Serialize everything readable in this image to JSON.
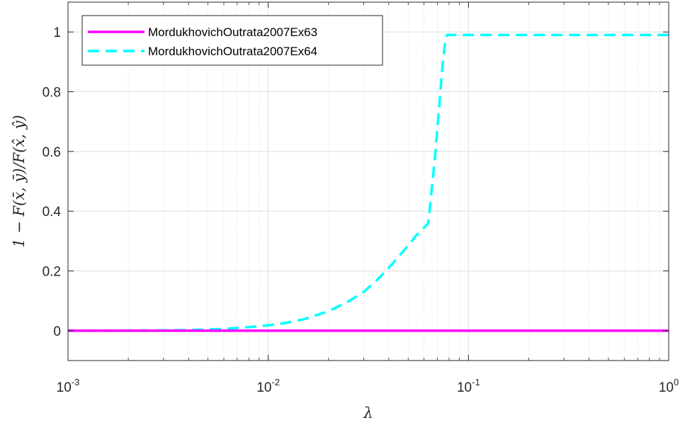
{
  "chart_data": {
    "type": "line",
    "xscale": "log",
    "xlim": [
      0.001,
      1
    ],
    "ylim": [
      -0.1,
      1.1
    ],
    "xticks": [
      {
        "value": 0.001,
        "base": "10",
        "exp": "-3"
      },
      {
        "value": 0.01,
        "base": "10",
        "exp": "-2"
      },
      {
        "value": 0.1,
        "base": "10",
        "exp": "-1"
      },
      {
        "value": 1,
        "base": "10",
        "exp": "0"
      }
    ],
    "yticks": [
      {
        "value": 0,
        "label": "0"
      },
      {
        "value": 0.2,
        "label": "0.2"
      },
      {
        "value": 0.4,
        "label": "0.4"
      },
      {
        "value": 0.6,
        "label": "0.6"
      },
      {
        "value": 0.8,
        "label": "0.8"
      },
      {
        "value": 1,
        "label": "1"
      }
    ],
    "xlabel": "λ",
    "ylabel": "1 − F(x̄, ȳ)/F(x̂, ŷ)",
    "grid": true,
    "legend_position": "top-left",
    "series": [
      {
        "name": "MordukhovichOutrata2007Ex63",
        "color": "#ff00ff",
        "style": "solid",
        "x": [
          0.001,
          0.01,
          0.1,
          1
        ],
        "y": [
          0,
          0,
          0,
          0
        ]
      },
      {
        "name": "MordukhovichOutrata2007Ex64",
        "color": "#00ffff",
        "style": "dashed",
        "x": [
          0.001,
          0.002,
          0.003,
          0.004,
          0.005,
          0.006,
          0.007,
          0.008,
          0.009,
          0.01,
          0.012,
          0.015,
          0.018,
          0.02,
          0.025,
          0.03,
          0.035,
          0.04,
          0.045,
          0.05,
          0.055,
          0.06,
          0.063,
          0.065,
          0.068,
          0.07,
          0.072,
          0.074,
          0.076,
          0.078,
          0.08,
          0.1,
          0.2,
          0.5,
          1
        ],
        "y": [
          0,
          0.0005,
          0.001,
          0.002,
          0.004,
          0.006,
          0.009,
          0.012,
          0.015,
          0.018,
          0.025,
          0.038,
          0.055,
          0.065,
          0.097,
          0.13,
          0.17,
          0.21,
          0.25,
          0.285,
          0.32,
          0.345,
          0.36,
          0.45,
          0.58,
          0.68,
          0.78,
          0.88,
          0.95,
          0.99,
          0.99,
          0.99,
          0.99,
          0.99,
          0.99
        ]
      }
    ]
  }
}
